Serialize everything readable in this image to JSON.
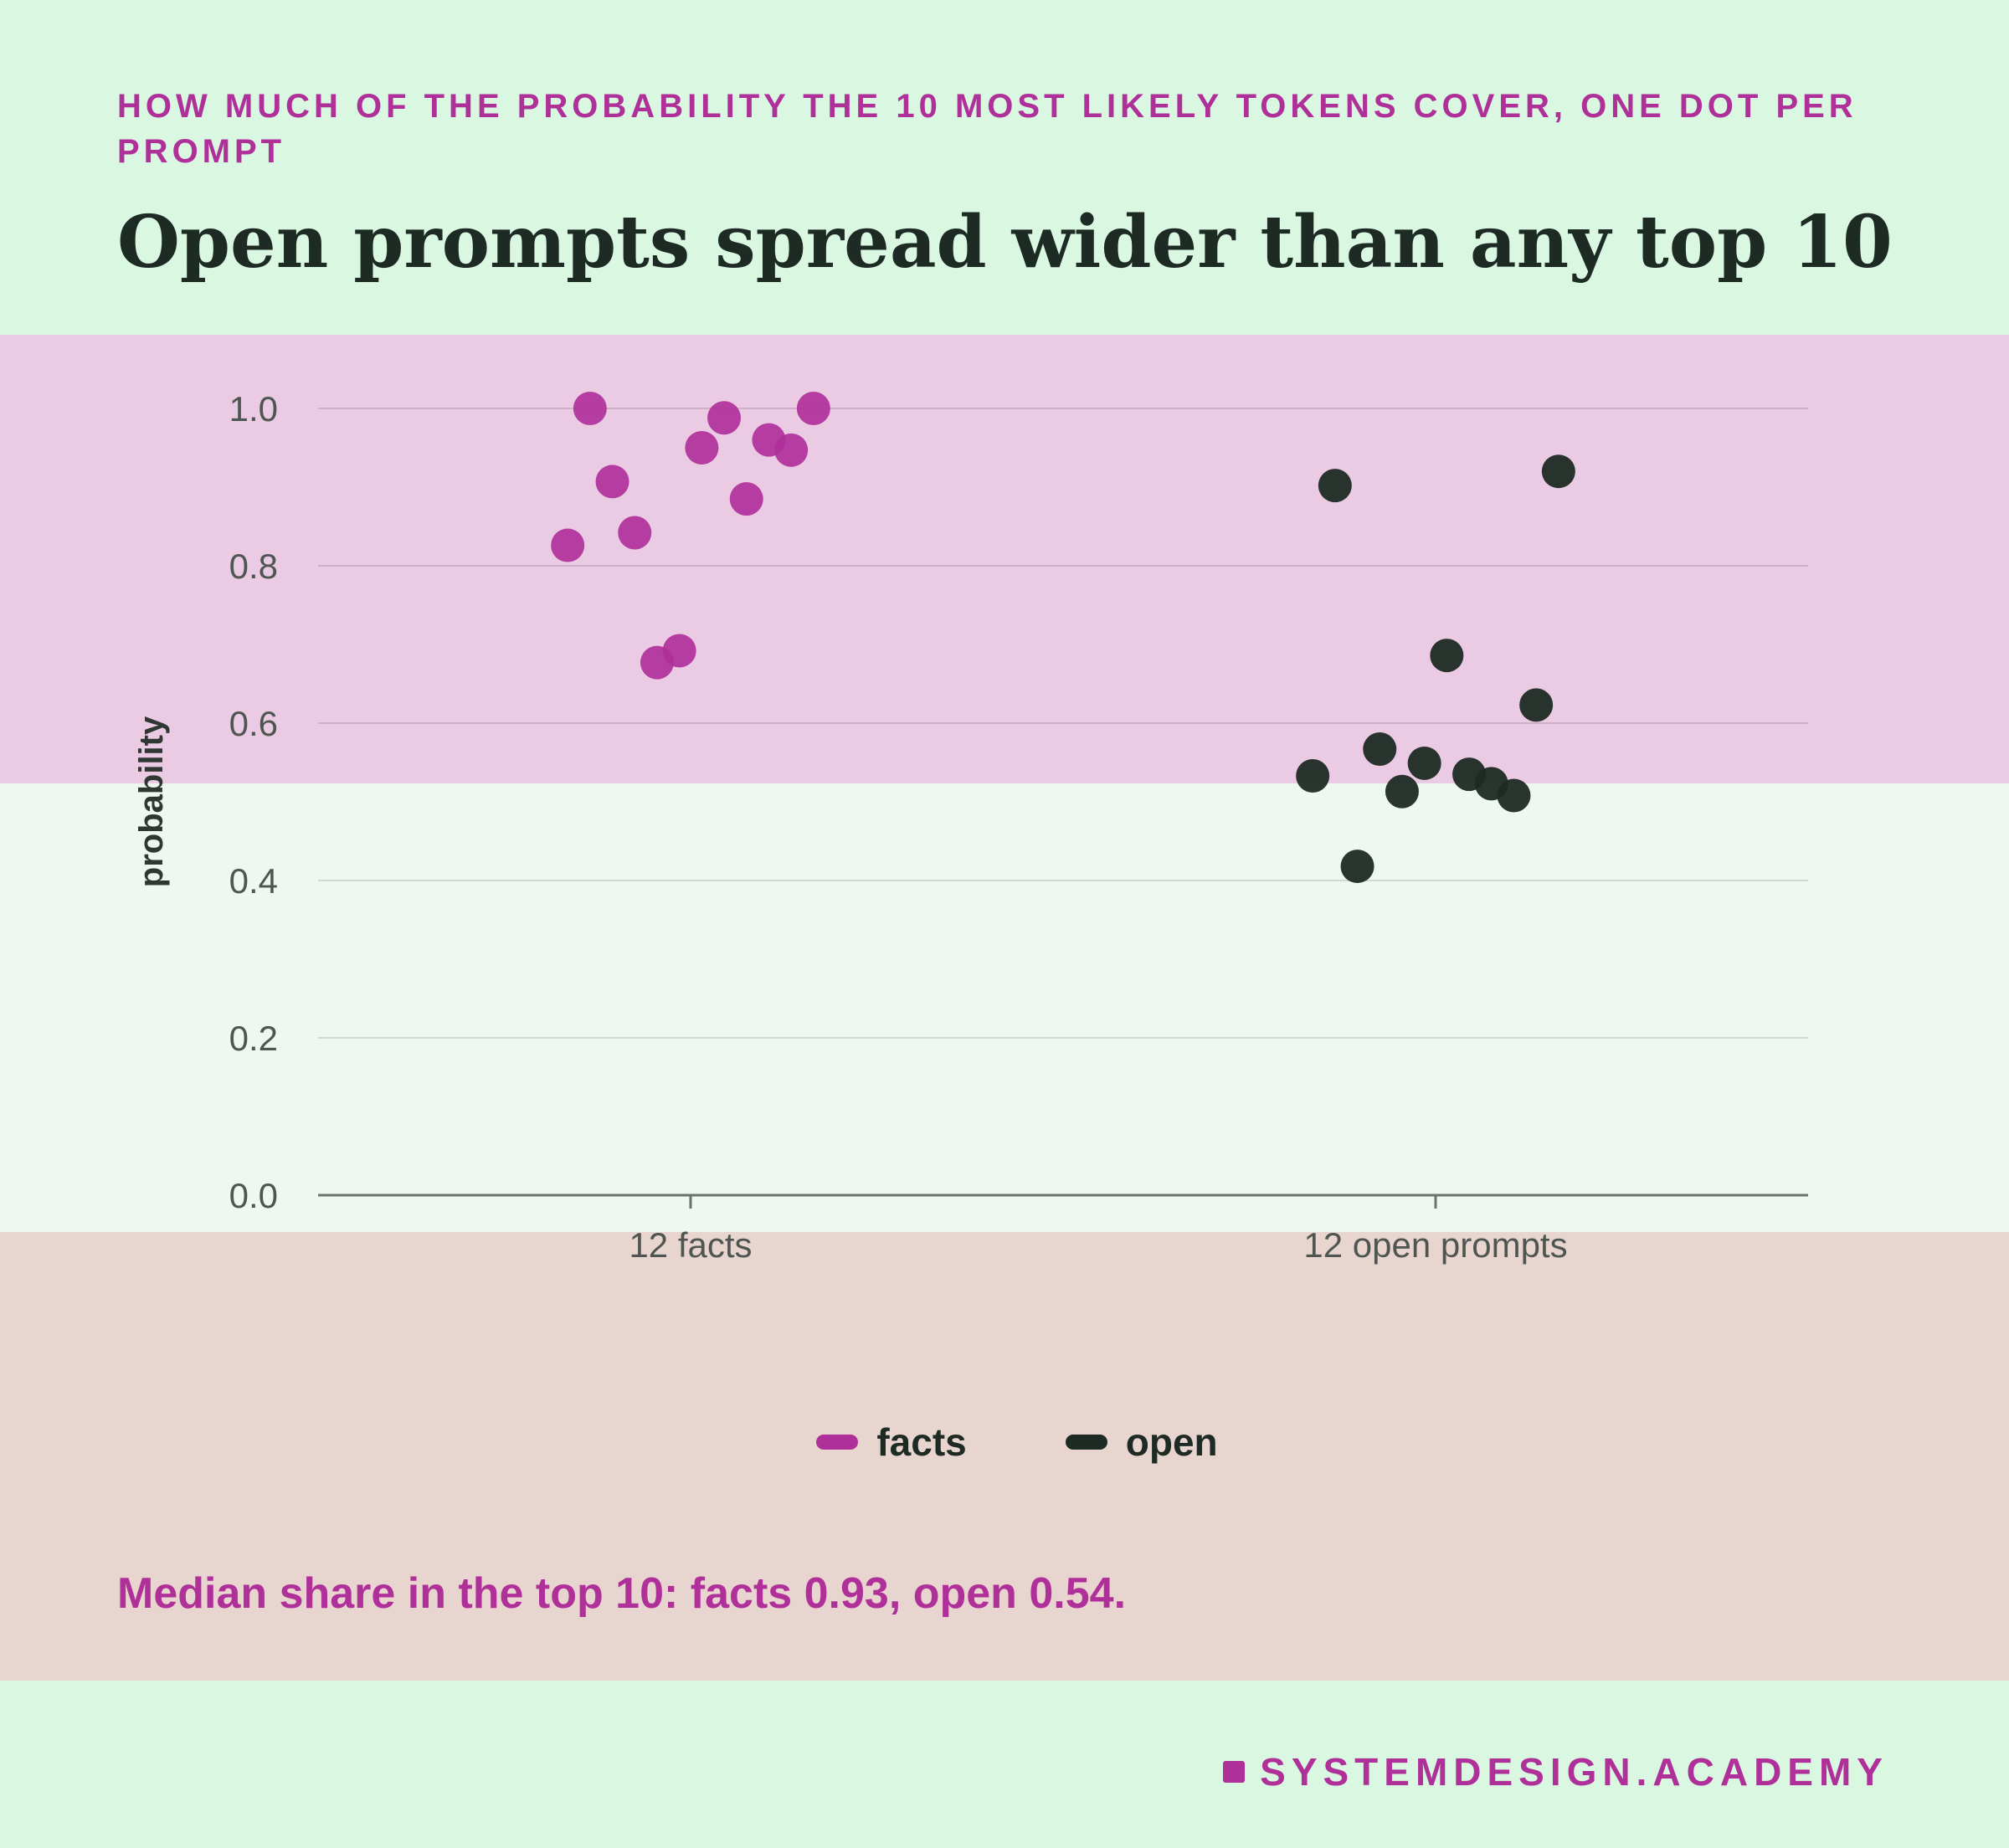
{
  "header": {
    "eyebrow": "How much of the probability the 10 most likely tokens cover, one dot per prompt",
    "title": "Open prompts spread wider than any top 10"
  },
  "chart_data": {
    "type": "scatter",
    "title": "Open prompts spread wider than any top 10",
    "subtitle": "How much of the probability the 10 most likely tokens cover, one dot per prompt",
    "ylabel": "probability",
    "xlabel": "",
    "ylim": [
      0,
      1.0
    ],
    "yticks": [
      "0.0",
      "0.2",
      "0.4",
      "0.6",
      "0.8",
      "1.0"
    ],
    "categories": [
      "12 facts",
      "12 open prompts"
    ],
    "grid": true,
    "legend_position": "bottom-center",
    "series": [
      {
        "name": "facts",
        "color": "#b0309a",
        "category": "12 facts",
        "values": [
          0.826,
          1.0,
          0.907,
          0.842,
          0.677,
          0.692,
          0.95,
          0.988,
          0.885,
          0.96,
          0.947,
          1.0
        ]
      },
      {
        "name": "open",
        "color": "#1e2a24",
        "category": "12 open prompts",
        "values": [
          0.533,
          0.902,
          0.418,
          0.567,
          0.513,
          0.549,
          0.686,
          0.535,
          0.523,
          0.508,
          0.623,
          0.92
        ]
      }
    ]
  },
  "legend": [
    {
      "label": "facts",
      "color": "#b0309a"
    },
    {
      "label": "open",
      "color": "#1e2a24"
    }
  ],
  "note": "Median share in the top 10: facts 0.93, open 0.54.",
  "brand": "SYSTEMDESIGN.ACADEMY"
}
